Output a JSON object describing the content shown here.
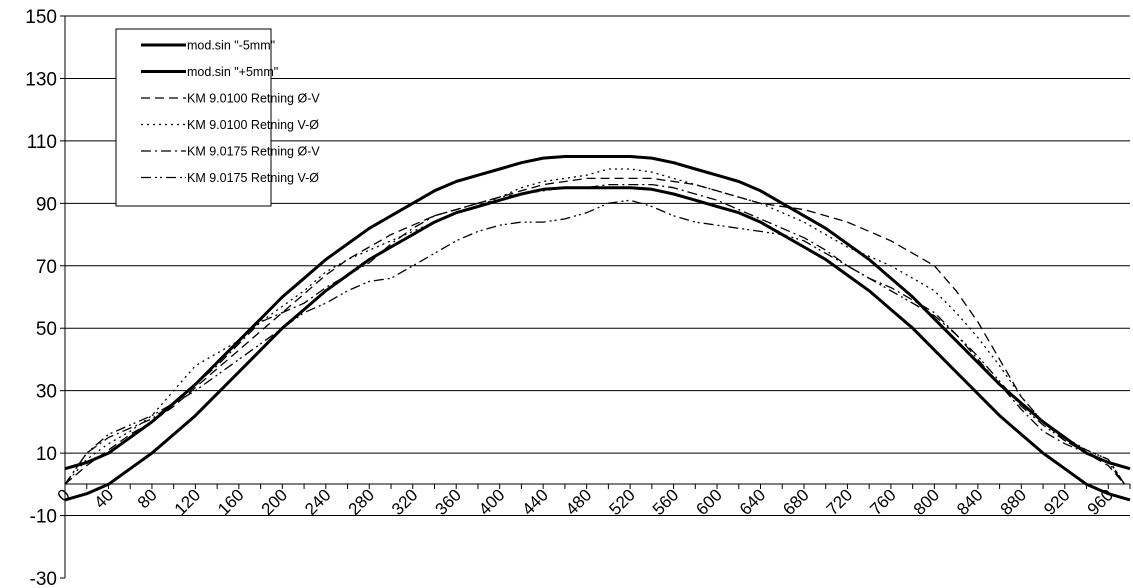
{
  "chart_data": {
    "type": "line",
    "title": "",
    "xlabel": "",
    "ylabel": "",
    "xlim": [
      0,
      980
    ],
    "ylim": [
      -30,
      150
    ],
    "y_ticks": [
      -30,
      -10,
      10,
      30,
      50,
      70,
      90,
      110,
      130,
      150
    ],
    "x_ticks": [
      0,
      40,
      80,
      120,
      160,
      200,
      240,
      280,
      320,
      360,
      400,
      440,
      480,
      520,
      560,
      600,
      640,
      680,
      720,
      760,
      800,
      840,
      880,
      920,
      960
    ],
    "y_tick_labels": [
      "-30",
      "-10",
      "10",
      "30",
      "50",
      "70",
      "90",
      "110",
      "130",
      "150"
    ],
    "x_tick_labels": [
      "0",
      "40",
      "80",
      "120",
      "160",
      "200",
      "240",
      "280",
      "320",
      "360",
      "400",
      "440",
      "480",
      "520",
      "560",
      "600",
      "640",
      "680",
      "720",
      "760",
      "800",
      "840",
      "880",
      "920",
      "960"
    ],
    "grid": "horizontal",
    "legend_position": "top-left",
    "series": [
      {
        "name": "mod.sin \"-5mm\"",
        "style": "solid",
        "color": "#000000",
        "x": [
          0,
          20,
          40,
          60,
          80,
          100,
          120,
          140,
          160,
          180,
          200,
          220,
          240,
          260,
          280,
          300,
          320,
          340,
          360,
          380,
          400,
          420,
          440,
          460,
          480,
          500,
          520,
          540,
          560,
          580,
          600,
          620,
          640,
          660,
          680,
          700,
          720,
          740,
          760,
          780,
          800,
          820,
          840,
          860,
          880,
          900,
          920,
          940,
          960,
          980
        ],
        "y": [
          -5,
          -3,
          0,
          5,
          10,
          16,
          22,
          29,
          36,
          43,
          50,
          56,
          62,
          67,
          72,
          76,
          80,
          84,
          87,
          89,
          91,
          93,
          94.5,
          95,
          95,
          95,
          95,
          94.5,
          93,
          91,
          89,
          87,
          84,
          80,
          76,
          72,
          67,
          62,
          56,
          50,
          43,
          36,
          29,
          22,
          16,
          10,
          5,
          0,
          -3,
          -5
        ]
      },
      {
        "name": "mod.sin \"+5mm\"",
        "style": "solid",
        "color": "#000000",
        "x": [
          0,
          20,
          40,
          60,
          80,
          100,
          120,
          140,
          160,
          180,
          200,
          220,
          240,
          260,
          280,
          300,
          320,
          340,
          360,
          380,
          400,
          420,
          440,
          460,
          480,
          500,
          520,
          540,
          560,
          580,
          600,
          620,
          640,
          660,
          680,
          700,
          720,
          740,
          760,
          780,
          800,
          820,
          840,
          860,
          880,
          900,
          920,
          940,
          960,
          980
        ],
        "y": [
          5,
          7,
          10,
          15,
          20,
          26,
          32,
          39,
          46,
          53,
          60,
          66,
          72,
          77,
          82,
          86,
          90,
          94,
          97,
          99,
          101,
          103,
          104.5,
          105,
          105,
          105,
          105,
          104.5,
          103,
          101,
          99,
          97,
          94,
          90,
          86,
          82,
          77,
          72,
          66,
          60,
          53,
          46,
          39,
          32,
          26,
          20,
          15,
          10,
          7,
          5
        ]
      },
      {
        "name": "KM 9.0100 Retning Ø-V",
        "style": "dashed",
        "color": "#000000",
        "x": [
          0,
          20,
          40,
          60,
          80,
          100,
          120,
          140,
          160,
          180,
          200,
          220,
          240,
          260,
          280,
          300,
          320,
          340,
          360,
          380,
          400,
          420,
          440,
          460,
          480,
          500,
          520,
          540,
          560,
          580,
          600,
          620,
          640,
          660,
          680,
          700,
          720,
          740,
          760,
          780,
          800,
          820,
          840,
          860,
          880,
          900,
          920,
          940,
          960,
          975
        ],
        "y": [
          0,
          6,
          11,
          16,
          20,
          25,
          31,
          37,
          43,
          49,
          55,
          61,
          67,
          72,
          76,
          80,
          83,
          86,
          88,
          90,
          92,
          94,
          96,
          97,
          98,
          98,
          98,
          98,
          97,
          96,
          94,
          92,
          90,
          89,
          88,
          86,
          84,
          81,
          78,
          74,
          70,
          62,
          52,
          40,
          28,
          20,
          14,
          10,
          6,
          0
        ]
      },
      {
        "name": "KM 9.0100 Retning V-Ø",
        "style": "dotted",
        "color": "#000000",
        "x": [
          0,
          20,
          40,
          60,
          80,
          100,
          120,
          140,
          160,
          180,
          200,
          220,
          240,
          260,
          280,
          300,
          320,
          340,
          360,
          380,
          400,
          420,
          440,
          460,
          480,
          500,
          520,
          540,
          560,
          580,
          600,
          620,
          640,
          660,
          680,
          700,
          720,
          740,
          760,
          780,
          800,
          820,
          840,
          860,
          880,
          900,
          920,
          940,
          960,
          975
        ],
        "y": [
          0,
          8,
          13,
          17,
          22,
          30,
          38,
          42,
          46,
          52,
          57,
          62,
          68,
          72,
          75,
          78,
          81,
          84,
          87,
          89,
          92,
          95,
          97,
          98,
          99,
          101,
          101,
          100,
          98,
          96,
          94,
          92,
          90,
          87,
          84,
          80,
          76,
          73,
          70,
          66,
          62,
          55,
          47,
          38,
          28,
          20,
          15,
          11,
          8,
          0
        ]
      },
      {
        "name": "KM 9.0175 Retning Ø-V",
        "style": "dashdot",
        "color": "#000000",
        "x": [
          0,
          20,
          40,
          60,
          80,
          100,
          120,
          140,
          160,
          180,
          200,
          220,
          240,
          260,
          280,
          300,
          320,
          340,
          360,
          380,
          400,
          420,
          440,
          460,
          480,
          500,
          520,
          540,
          560,
          580,
          600,
          620,
          640,
          660,
          680,
          700,
          720,
          740,
          760,
          780,
          800,
          820,
          840,
          860,
          880,
          900,
          920,
          940,
          960,
          975
        ],
        "y": [
          0,
          10,
          15,
          18,
          21,
          26,
          32,
          38,
          45,
          52,
          55,
          58,
          63,
          67,
          71,
          77,
          82,
          86,
          88,
          90,
          92,
          93,
          94,
          95,
          95,
          96,
          96,
          96,
          95,
          93,
          91,
          88,
          85,
          82,
          79,
          75,
          70,
          66,
          63,
          59,
          55,
          48,
          40,
          32,
          24,
          17,
          13,
          10,
          7,
          0
        ]
      },
      {
        "name": "KM 9.0175 Retning V-Ø",
        "style": "dashdotdot",
        "color": "#000000",
        "x": [
          0,
          20,
          40,
          60,
          80,
          100,
          120,
          140,
          160,
          180,
          200,
          220,
          240,
          260,
          280,
          300,
          320,
          340,
          360,
          380,
          400,
          420,
          440,
          460,
          480,
          500,
          520,
          540,
          560,
          580,
          600,
          620,
          640,
          660,
          680,
          700,
          720,
          740,
          760,
          780,
          800,
          820,
          840,
          860,
          880,
          900,
          920,
          940,
          960,
          975
        ],
        "y": [
          0,
          10,
          16,
          19,
          22,
          26,
          30,
          35,
          40,
          45,
          50,
          55,
          58,
          62,
          65,
          66,
          70,
          74,
          78,
          81,
          83,
          84,
          84,
          85,
          87,
          90,
          91,
          89,
          86,
          84,
          83,
          82,
          81,
          80,
          78,
          74,
          70,
          66,
          62,
          58,
          54,
          48,
          41,
          33,
          25,
          19,
          14,
          11,
          8,
          0
        ]
      }
    ]
  }
}
